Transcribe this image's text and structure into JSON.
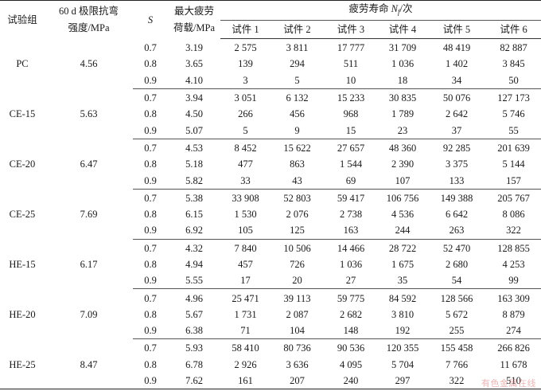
{
  "header": {
    "group": "试验组",
    "strength_line1": "60 d 极限抗弯",
    "strength_line2": "强度/MPa",
    "s": "S",
    "load_line1": "最大疲劳",
    "load_line2": "荷载/MPa",
    "life_prefix": "疲劳寿命 ",
    "life_N": "N",
    "life_sub": "f",
    "life_suffix": "/次",
    "specimens": [
      "试件 1",
      "试件 2",
      "试件 3",
      "试件 4",
      "试件 5",
      "试件 6"
    ]
  },
  "groups": [
    {
      "name": "PC",
      "strength": "4.56",
      "rows": [
        {
          "s": "0.7",
          "load": "3.19",
          "lives": [
            "2 575",
            "3 811",
            "17 777",
            "31 709",
            "48 419",
            "82 887"
          ]
        },
        {
          "s": "0.8",
          "load": "3.65",
          "lives": [
            "139",
            "294",
            "511",
            "1 036",
            "1 402",
            "3 845"
          ]
        },
        {
          "s": "0.9",
          "load": "4.10",
          "lives": [
            "3",
            "5",
            "10",
            "18",
            "34",
            "50"
          ]
        }
      ]
    },
    {
      "name": "CE-15",
      "strength": "5.63",
      "rows": [
        {
          "s": "0.7",
          "load": "3.94",
          "lives": [
            "3 051",
            "6 132",
            "15 233",
            "30 835",
            "50 076",
            "127 173"
          ]
        },
        {
          "s": "0.8",
          "load": "4.50",
          "lives": [
            "266",
            "456",
            "968",
            "1 789",
            "2 642",
            "5 746"
          ]
        },
        {
          "s": "0.9",
          "load": "5.07",
          "lives": [
            "5",
            "9",
            "15",
            "23",
            "37",
            "55"
          ]
        }
      ]
    },
    {
      "name": "CE-20",
      "strength": "6.47",
      "rows": [
        {
          "s": "0.7",
          "load": "4.53",
          "lives": [
            "8 452",
            "15 622",
            "27 657",
            "48 360",
            "92 285",
            "201 639"
          ]
        },
        {
          "s": "0.8",
          "load": "5.18",
          "lives": [
            "477",
            "863",
            "1 544",
            "2 390",
            "3 375",
            "5 144"
          ]
        },
        {
          "s": "0.9",
          "load": "5.82",
          "lives": [
            "33",
            "43",
            "69",
            "107",
            "133",
            "157"
          ]
        }
      ]
    },
    {
      "name": "CE-25",
      "strength": "7.69",
      "rows": [
        {
          "s": "0.7",
          "load": "5.38",
          "lives": [
            "33 908",
            "52 803",
            "59 417",
            "106 756",
            "149 388",
            "205 767"
          ]
        },
        {
          "s": "0.8",
          "load": "6.15",
          "lives": [
            "1 530",
            "2 076",
            "2 738",
            "4 536",
            "6 642",
            "8 086"
          ]
        },
        {
          "s": "0.9",
          "load": "6.92",
          "lives": [
            "105",
            "125",
            "163",
            "244",
            "263",
            "322"
          ]
        }
      ]
    },
    {
      "name": "HE-15",
      "strength": "6.17",
      "rows": [
        {
          "s": "0.7",
          "load": "4.32",
          "lives": [
            "7 840",
            "10 506",
            "14 466",
            "28 722",
            "52 470",
            "128 855"
          ]
        },
        {
          "s": "0.8",
          "load": "4.94",
          "lives": [
            "457",
            "726",
            "1 036",
            "1 675",
            "2 680",
            "4 253"
          ]
        },
        {
          "s": "0.9",
          "load": "5.55",
          "lives": [
            "17",
            "20",
            "27",
            "35",
            "54",
            "99"
          ]
        }
      ]
    },
    {
      "name": "HE-20",
      "strength": "7.09",
      "rows": [
        {
          "s": "0.7",
          "load": "4.96",
          "lives": [
            "25 471",
            "39 113",
            "59 775",
            "84 592",
            "128 566",
            "163 309"
          ]
        },
        {
          "s": "0.8",
          "load": "5.67",
          "lives": [
            "1 731",
            "2 087",
            "2 682",
            "3 810",
            "5 672",
            "8 879"
          ]
        },
        {
          "s": "0.9",
          "load": "6.38",
          "lives": [
            "71",
            "104",
            "148",
            "192",
            "255",
            "274"
          ]
        }
      ]
    },
    {
      "name": "HE-25",
      "strength": "8.47",
      "rows": [
        {
          "s": "0.7",
          "load": "5.93",
          "lives": [
            "58 410",
            "80 736",
            "90 536",
            "120 355",
            "155 458",
            "266 826"
          ]
        },
        {
          "s": "0.8",
          "load": "6.78",
          "lives": [
            "2 926",
            "3 636",
            "4 095",
            "5 704",
            "7 766",
            "11 678"
          ]
        },
        {
          "s": "0.9",
          "load": "7.62",
          "lives": [
            "161",
            "207",
            "240",
            "297",
            "322",
            "510"
          ]
        }
      ]
    }
  ],
  "watermark": "有色金属在线"
}
